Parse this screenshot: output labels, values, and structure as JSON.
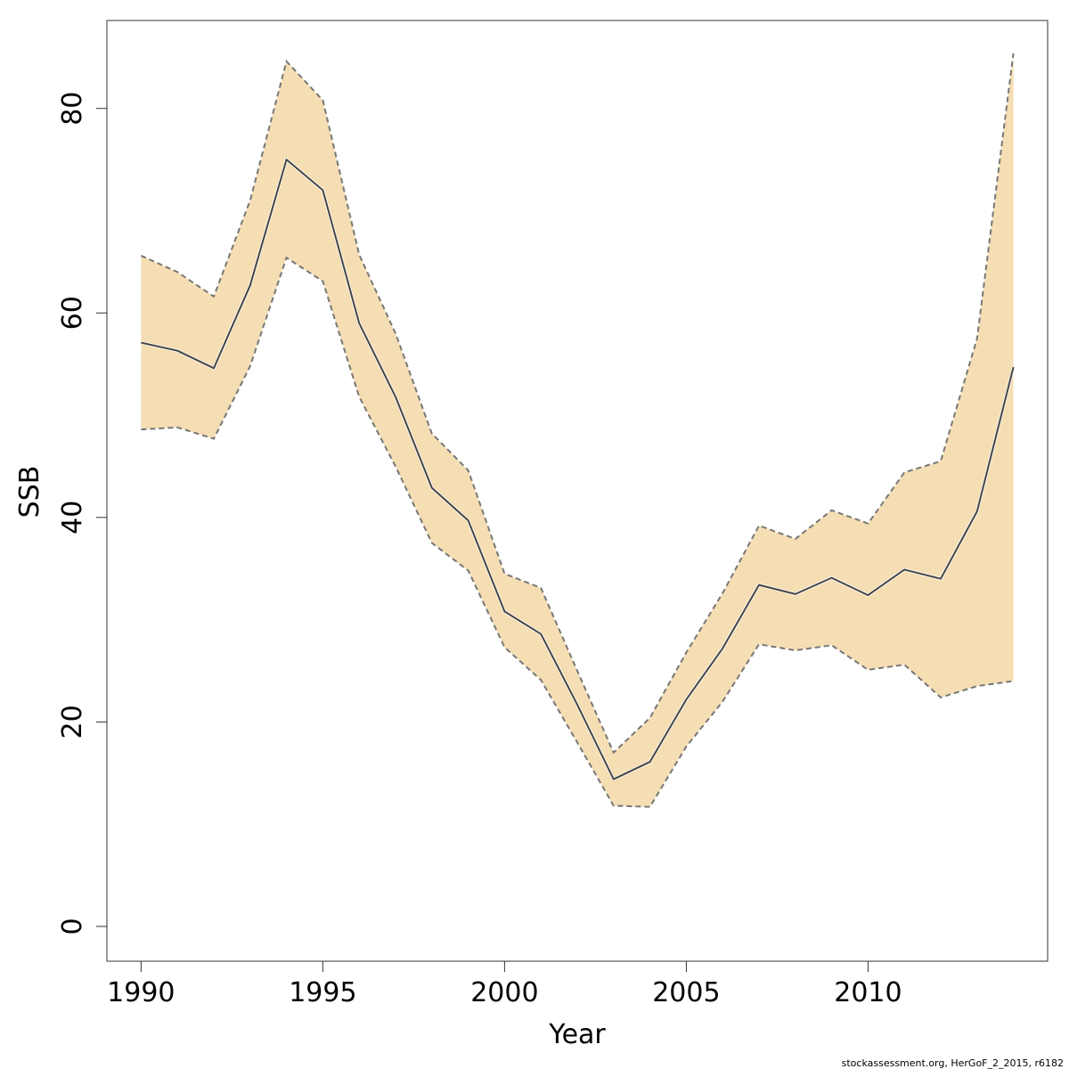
{
  "chart_data": {
    "type": "area",
    "xlabel": "Year",
    "ylabel": "SSB",
    "xlim": [
      1989.06,
      2014.94
    ],
    "ylim": [
      -3.4,
      88.6
    ],
    "x_ticks": [
      1990,
      1995,
      2000,
      2005,
      2010
    ],
    "y_ticks": [
      0,
      20,
      40,
      60,
      80
    ],
    "grid": false,
    "legend": "none",
    "x": [
      1990,
      1991,
      1992,
      1993,
      1994,
      1995,
      1996,
      1997,
      1998,
      1999,
      2000,
      2001,
      2002,
      2003,
      2004,
      2005,
      2006,
      2007,
      2008,
      2009,
      2010,
      2011,
      2012,
      2013,
      2014
    ],
    "series": [
      {
        "role": "estimate",
        "values": [
          57.1,
          56.3,
          54.6,
          62.7,
          75.0,
          72.0,
          59.0,
          51.8,
          42.9,
          39.7,
          30.8,
          28.6,
          21.7,
          14.4,
          16.1,
          22.2,
          27.2,
          33.4,
          32.5,
          34.1,
          32.4,
          34.9,
          34.0,
          40.6,
          54.7
        ]
      },
      {
        "role": "upper-bound",
        "values": [
          65.6,
          64.0,
          61.6,
          71.0,
          84.6,
          80.8,
          65.7,
          58.0,
          48.2,
          44.6,
          34.5,
          33.1,
          25.0,
          17.0,
          20.4,
          26.8,
          32.6,
          39.2,
          37.9,
          40.7,
          39.4,
          44.4,
          45.5,
          57.5,
          85.4
        ]
      },
      {
        "role": "lower-bound",
        "values": [
          48.6,
          48.8,
          47.7,
          54.8,
          65.4,
          63.1,
          51.8,
          45.0,
          37.5,
          34.8,
          27.3,
          24.1,
          18.0,
          11.8,
          11.7,
          17.6,
          22.0,
          27.6,
          27.0,
          27.5,
          25.1,
          25.6,
          22.4,
          23.5,
          24.0
        ]
      }
    ],
    "footer": "stockassessment.org, HerGoF_2_2015, r6182"
  },
  "colors": {
    "band_fill": "#f5deb3",
    "band_edge": "#777777",
    "estimate_line": "#444444",
    "axis": "#333333"
  }
}
